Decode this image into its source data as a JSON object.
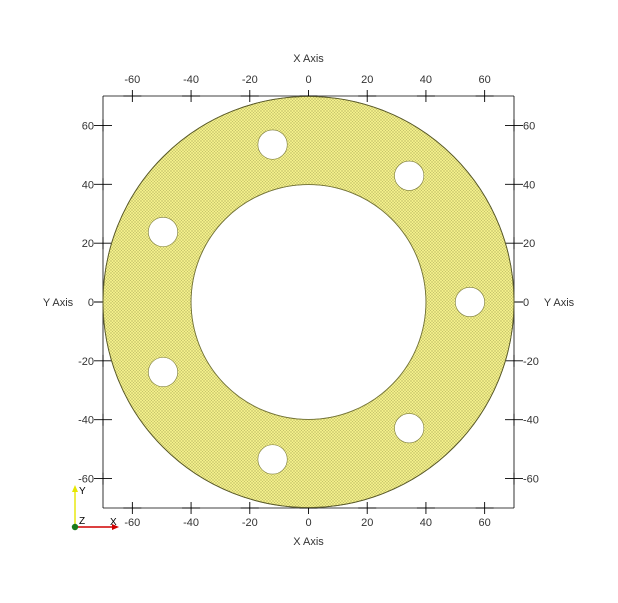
{
  "view": {
    "x_range": [
      -70,
      70
    ],
    "y_range": [
      -70,
      70
    ],
    "axes": {
      "top_title": "X Axis",
      "bottom_title": "X Axis",
      "left_title": "Y Axis",
      "right_title": "Y Axis",
      "x_ticks": [
        "-60",
        "-40",
        "-20",
        "0",
        "20",
        "40",
        "60"
      ],
      "y_ticks": [
        "60",
        "40",
        "20",
        "0",
        "-20",
        "-40",
        "-60"
      ]
    }
  },
  "mesh": {
    "shape": "annular flange with bolt holes",
    "outer_radius": 70,
    "inner_radius": 40,
    "hole_ring_radius": 55,
    "hole_radius": 5,
    "hole_count": 7,
    "hole_start_angle_deg": 0,
    "fill_color": "#f2ef8a",
    "edge_color": "#5a5a2a",
    "rendering": "wireframe surface with dense triangulated mesh"
  },
  "orientation_widget": {
    "y_label": "Y",
    "z_label": "Z",
    "x_label": "X",
    "y_color": "#e6e600",
    "x_color": "#d00000",
    "origin_color": "#1a7a1a"
  },
  "colors": {
    "background": "#ffffff",
    "axis_line": "#000000",
    "text": "#333333"
  }
}
